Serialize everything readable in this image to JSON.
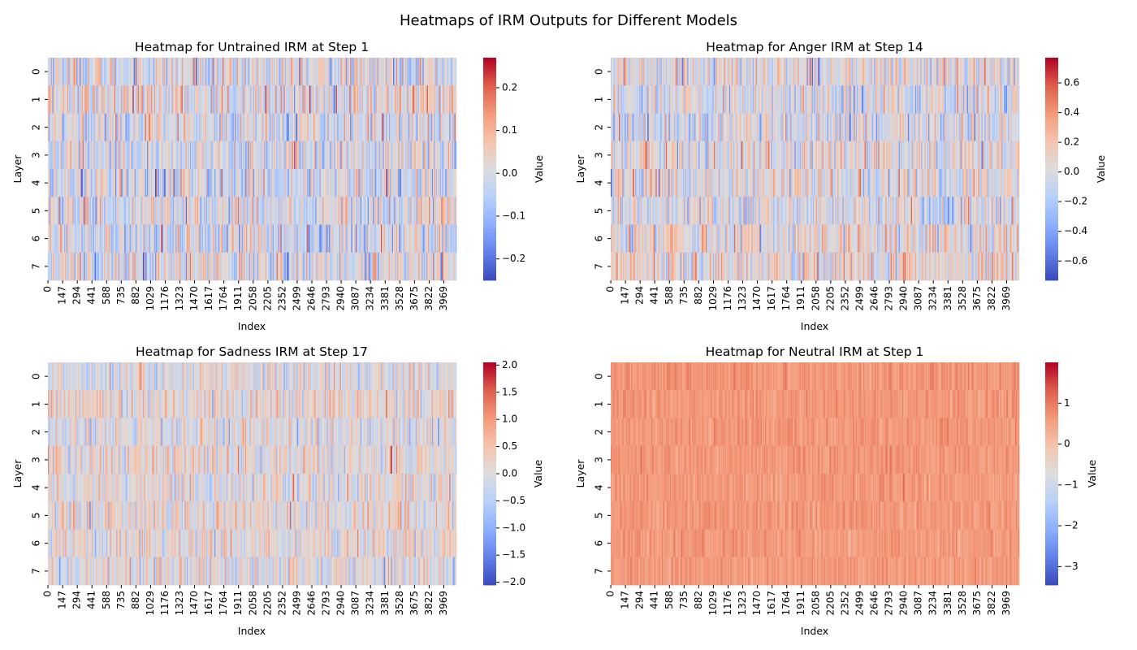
{
  "figure": {
    "title": "Heatmaps of IRM Outputs for Different Models"
  },
  "chart_data": [
    {
      "type": "heatmap",
      "title": "Heatmap for Untrained IRM at Step 1",
      "xlabel": "Index",
      "ylabel": "Layer",
      "colorbar_label": "Value",
      "colormap": "coolwarm",
      "rows": 8,
      "columns": 4096,
      "y_ticks": [
        "0",
        "1",
        "2",
        "3",
        "4",
        "5",
        "6",
        "7"
      ],
      "x_ticks": [
        "0",
        "147",
        "294",
        "441",
        "588",
        "735",
        "882",
        "1029",
        "1176",
        "1323",
        "1470",
        "1617",
        "1764",
        "1911",
        "2058",
        "2205",
        "2352",
        "2499",
        "2646",
        "2793",
        "2940",
        "3087",
        "3234",
        "3381",
        "3528",
        "3675",
        "3822",
        "3969"
      ],
      "value_range": [
        -0.25,
        0.27
      ],
      "colorbar_ticks": [
        -0.2,
        -0.1,
        0.0,
        0.1,
        0.2
      ],
      "colorbar_tick_labels": [
        "−0.2",
        "−0.1",
        "0.0",
        "0.1",
        "0.2"
      ],
      "distribution_center": 0.0,
      "distribution_spread": 0.075
    },
    {
      "type": "heatmap",
      "title": "Heatmap for Anger IRM at Step 14",
      "xlabel": "Index",
      "ylabel": "Layer",
      "colorbar_label": "Value",
      "colormap": "coolwarm",
      "rows": 8,
      "columns": 4096,
      "y_ticks": [
        "0",
        "1",
        "2",
        "3",
        "4",
        "5",
        "6",
        "7"
      ],
      "x_ticks": [
        "0",
        "147",
        "294",
        "441",
        "588",
        "735",
        "882",
        "1029",
        "1176",
        "1323",
        "1470",
        "1617",
        "1764",
        "1911",
        "2058",
        "2205",
        "2352",
        "2499",
        "2646",
        "2793",
        "2940",
        "3087",
        "3234",
        "3381",
        "3528",
        "3675",
        "3822",
        "3969"
      ],
      "value_range": [
        -0.73,
        0.77
      ],
      "colorbar_ticks": [
        -0.6,
        -0.4,
        -0.2,
        0.0,
        0.2,
        0.4,
        0.6
      ],
      "colorbar_tick_labels": [
        "−0.6",
        "−0.4",
        "−0.2",
        "0.0",
        "0.2",
        "0.4",
        "0.6"
      ],
      "distribution_center": 0.0,
      "distribution_spread": 0.2
    },
    {
      "type": "heatmap",
      "title": "Heatmap for Sadness IRM at Step 17",
      "xlabel": "Index",
      "ylabel": "Layer",
      "colorbar_label": "Value",
      "colormap": "coolwarm",
      "rows": 8,
      "columns": 4096,
      "y_ticks": [
        "0",
        "1",
        "2",
        "3",
        "4",
        "5",
        "6",
        "7"
      ],
      "x_ticks": [
        "0",
        "147",
        "294",
        "441",
        "588",
        "735",
        "882",
        "1029",
        "1176",
        "1323",
        "1470",
        "1617",
        "1764",
        "1911",
        "2058",
        "2205",
        "2352",
        "2499",
        "2646",
        "2793",
        "2940",
        "3087",
        "3234",
        "3381",
        "3528",
        "3675",
        "3822",
        "3969"
      ],
      "value_range": [
        -2.05,
        2.05
      ],
      "colorbar_ticks": [
        -2.0,
        -1.5,
        -1.0,
        -0.5,
        0.0,
        0.5,
        1.0,
        1.5,
        2.0
      ],
      "colorbar_tick_labels": [
        "−2.0",
        "−1.5",
        "−1.0",
        "−0.5",
        "0.0",
        "0.5",
        "1.0",
        "1.5",
        "2.0"
      ],
      "distribution_center": 0.05,
      "distribution_spread": 0.45
    },
    {
      "type": "heatmap",
      "title": "Heatmap for Neutral IRM at Step 1",
      "xlabel": "Index",
      "ylabel": "Layer",
      "colorbar_label": "Value",
      "colormap": "coolwarm",
      "rows": 8,
      "columns": 4096,
      "y_ticks": [
        "0",
        "1",
        "2",
        "3",
        "4",
        "5",
        "6",
        "7"
      ],
      "x_ticks": [
        "0",
        "147",
        "294",
        "441",
        "588",
        "735",
        "882",
        "1029",
        "1176",
        "1323",
        "1470",
        "1617",
        "1764",
        "1911",
        "2058",
        "2205",
        "2352",
        "2499",
        "2646",
        "2793",
        "2940",
        "3087",
        "3234",
        "3381",
        "3528",
        "3675",
        "3822",
        "3969"
      ],
      "value_range": [
        -3.45,
        2.0
      ],
      "colorbar_ticks": [
        -3,
        -2,
        -1,
        0,
        1
      ],
      "colorbar_tick_labels": [
        "−3",
        "−2",
        "−1",
        "0",
        "1"
      ],
      "distribution_center": 0.65,
      "distribution_spread": 0.18
    }
  ]
}
